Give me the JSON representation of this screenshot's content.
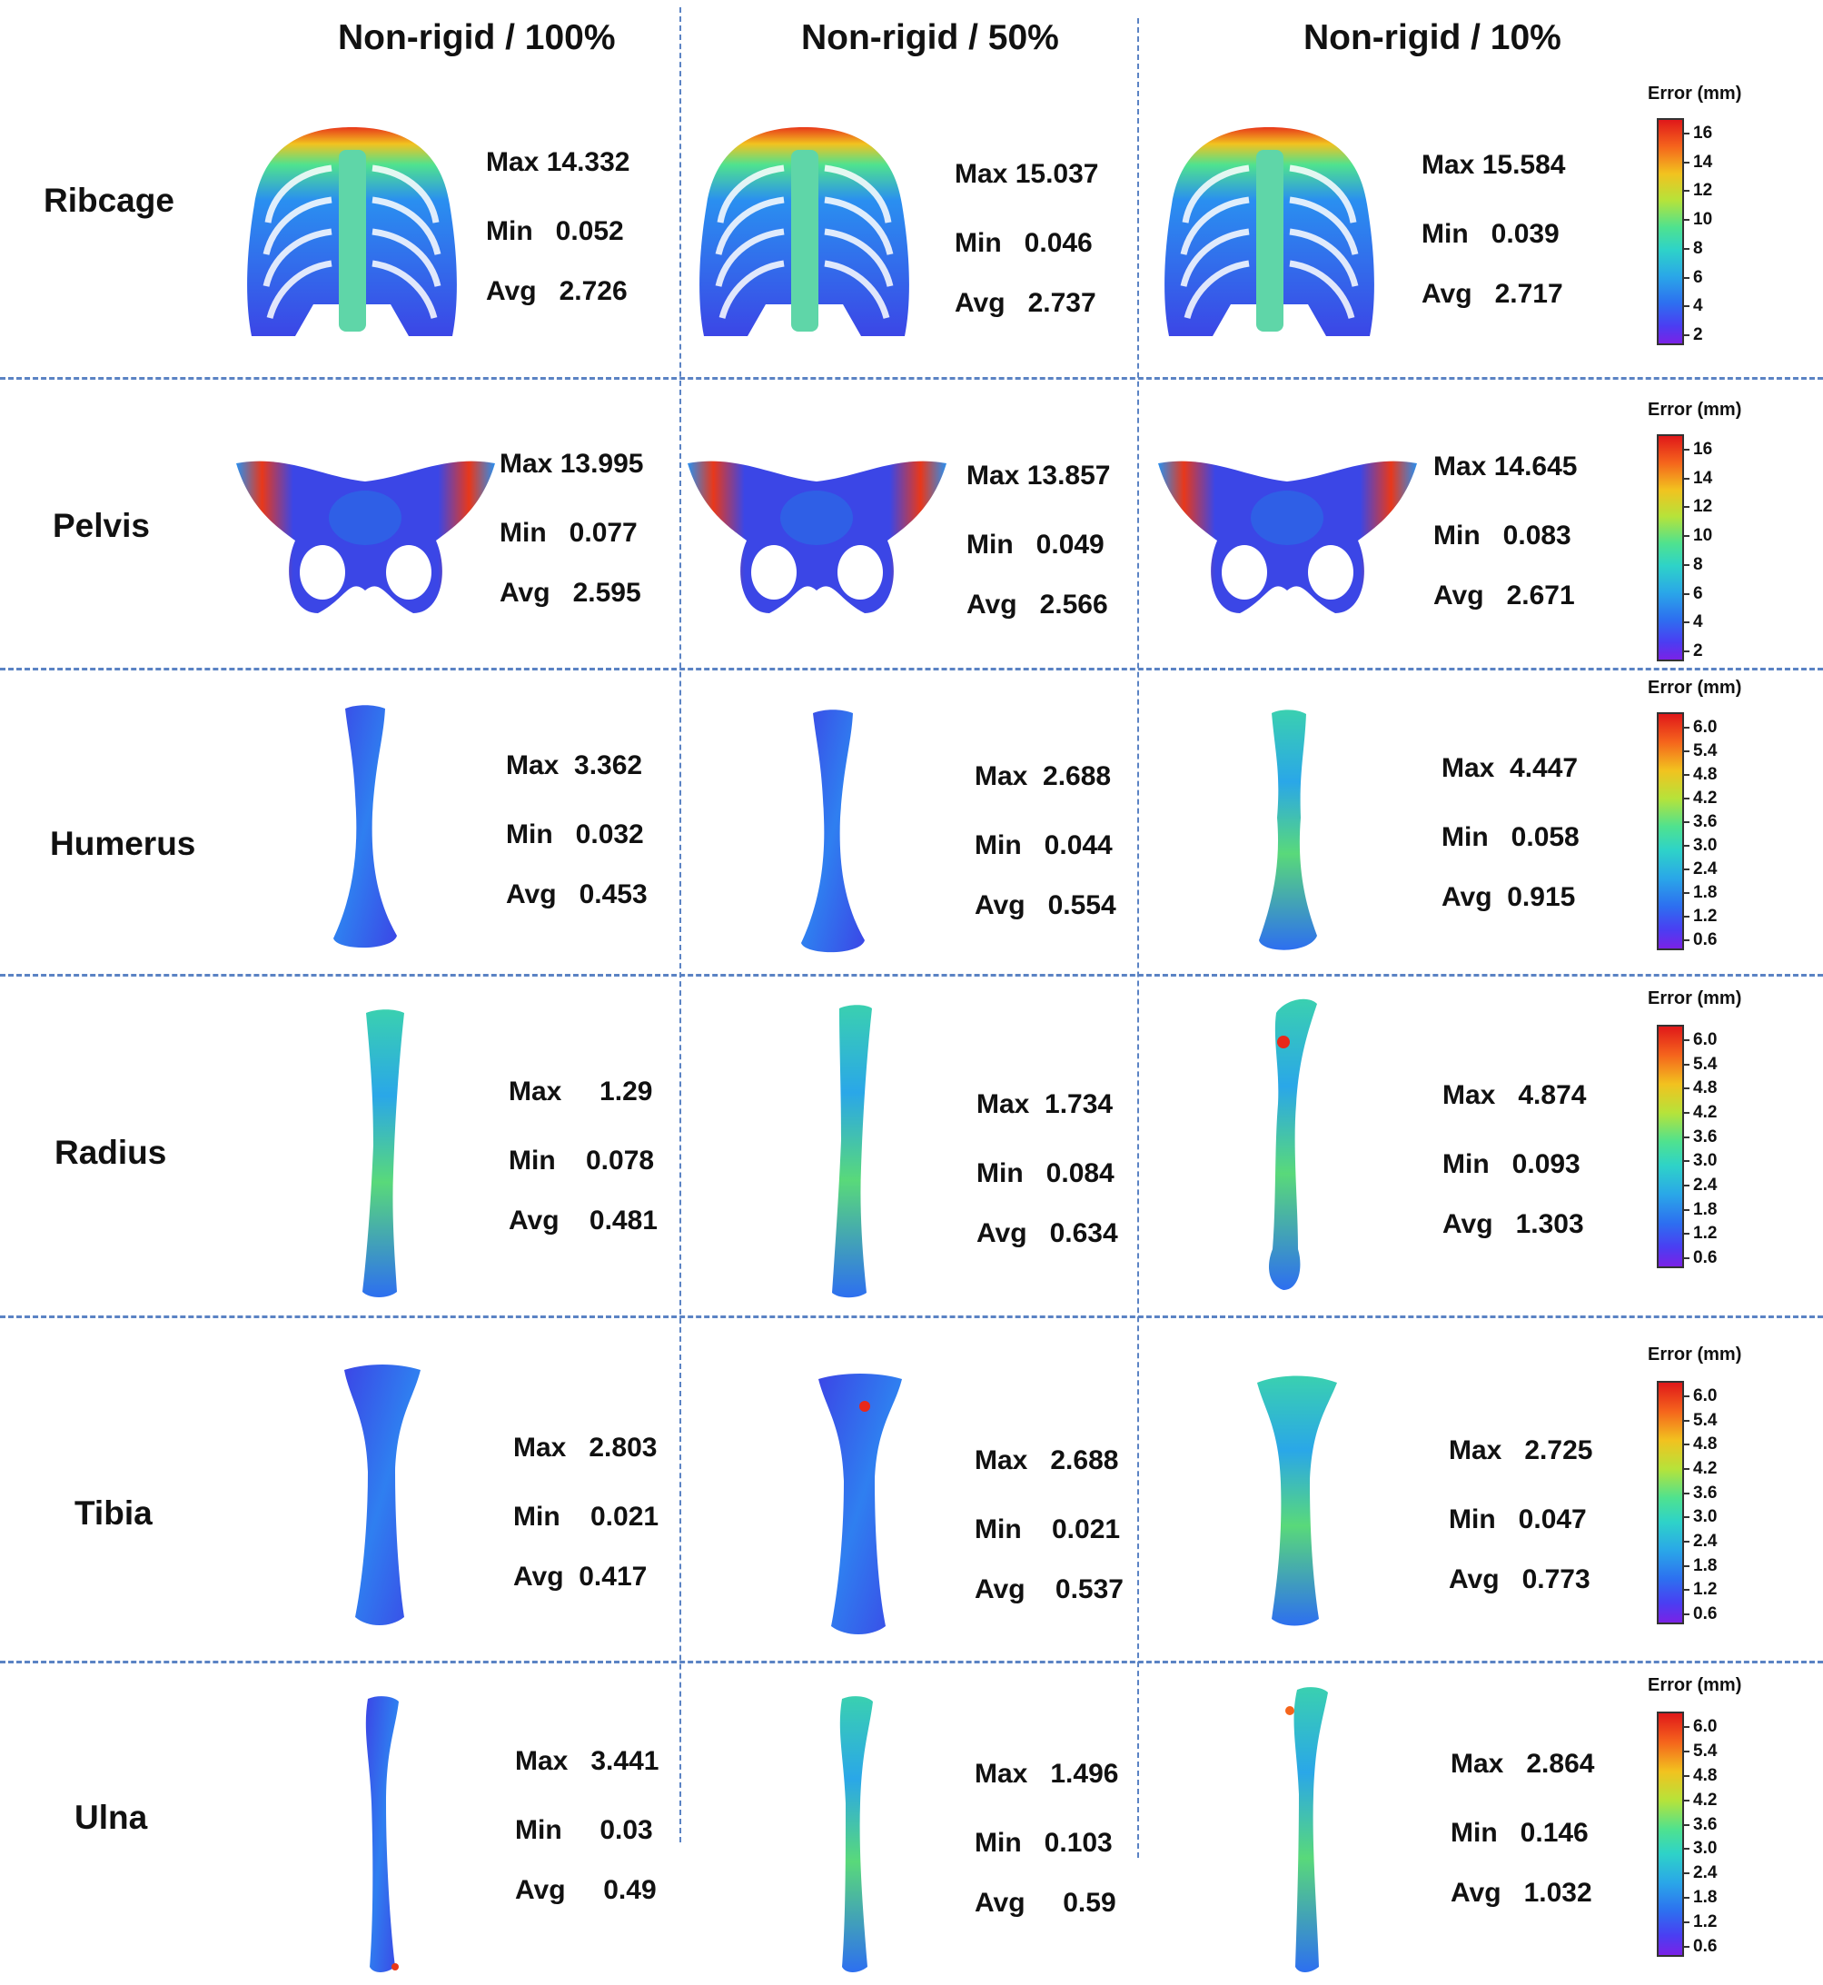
{
  "columns": [
    "Non-rigid  / 100%",
    "Non-rigid  / 50%",
    "Non-rigid  / 10%"
  ],
  "stat_labels": {
    "max": "Max",
    "min": "Min",
    "avg": "Avg"
  },
  "rows": [
    {
      "label": "Ribcage",
      "cells": [
        {
          "max": "14.332",
          "min": "0.052",
          "avg": "2.726"
        },
        {
          "max": "15.037",
          "min": "0.046",
          "avg": "2.737"
        },
        {
          "max": "15.584",
          "min": "0.039",
          "avg": "2.717"
        }
      ]
    },
    {
      "label": "Pelvis",
      "cells": [
        {
          "max": "13.995",
          "min": "0.077",
          "avg": "2.595"
        },
        {
          "max": "13.857",
          "min": "0.049",
          "avg": "2.566"
        },
        {
          "max": "14.645",
          "min": "0.083",
          "avg": "2.671"
        }
      ]
    },
    {
      "label": "Humerus",
      "cells": [
        {
          "max": "3.362",
          "min": "0.032",
          "avg": "0.453"
        },
        {
          "max": "2.688",
          "min": "0.044",
          "avg": "0.554"
        },
        {
          "max": "4.447",
          "min": "0.058",
          "avg": "0.915"
        }
      ]
    },
    {
      "label": "Radius",
      "cells": [
        {
          "max": "1.29",
          "min": "0.078",
          "avg": "0.481"
        },
        {
          "max": "1.734",
          "min": "0.084",
          "avg": "0.634"
        },
        {
          "max": "4.874",
          "min": "0.093",
          "avg": "1.303"
        }
      ]
    },
    {
      "label": "Tibia",
      "cells": [
        {
          "max": "2.803",
          "min": "0.021",
          "avg": "0.417"
        },
        {
          "max": "2.688",
          "min": "0.021",
          "avg": "0.537"
        },
        {
          "max": "2.725",
          "min": "0.047",
          "avg": "0.773"
        }
      ]
    },
    {
      "label": "Ulna",
      "cells": [
        {
          "max": "3.441",
          "min": "0.03",
          "avg": "0.49"
        },
        {
          "max": "1.496",
          "min": "0.103",
          "avg": "0.59"
        },
        {
          "max": "2.864",
          "min": "0.146",
          "avg": "1.032"
        }
      ]
    }
  ],
  "colorbar_title": "Error (mm)",
  "colorbars": [
    {
      "ticks": [
        "16",
        "14",
        "12",
        "10",
        "8",
        "6",
        "4",
        "2"
      ]
    },
    {
      "ticks": [
        "16",
        "14",
        "12",
        "10",
        "8",
        "6",
        "4",
        "2"
      ]
    },
    {
      "ticks": [
        "6.0",
        "5.4",
        "4.8",
        "4.2",
        "3.6",
        "3.0",
        "2.4",
        "1.8",
        "1.2",
        "0.6"
      ]
    },
    {
      "ticks": [
        "6.0",
        "5.4",
        "4.8",
        "4.2",
        "3.6",
        "3.0",
        "2.4",
        "1.8",
        "1.2",
        "0.6"
      ]
    },
    {
      "ticks": [
        "6.0",
        "5.4",
        "4.8",
        "4.2",
        "3.6",
        "3.0",
        "2.4",
        "1.8",
        "1.2",
        "0.6"
      ]
    },
    {
      "ticks": [
        "6.0",
        "5.4",
        "4.8",
        "4.2",
        "3.6",
        "3.0",
        "2.4",
        "1.8",
        "1.2",
        "0.6"
      ]
    }
  ],
  "colors": {
    "separator": "#5b83c4",
    "mesh_base": "#3b46e6",
    "mesh_hot": "#e8381a"
  }
}
